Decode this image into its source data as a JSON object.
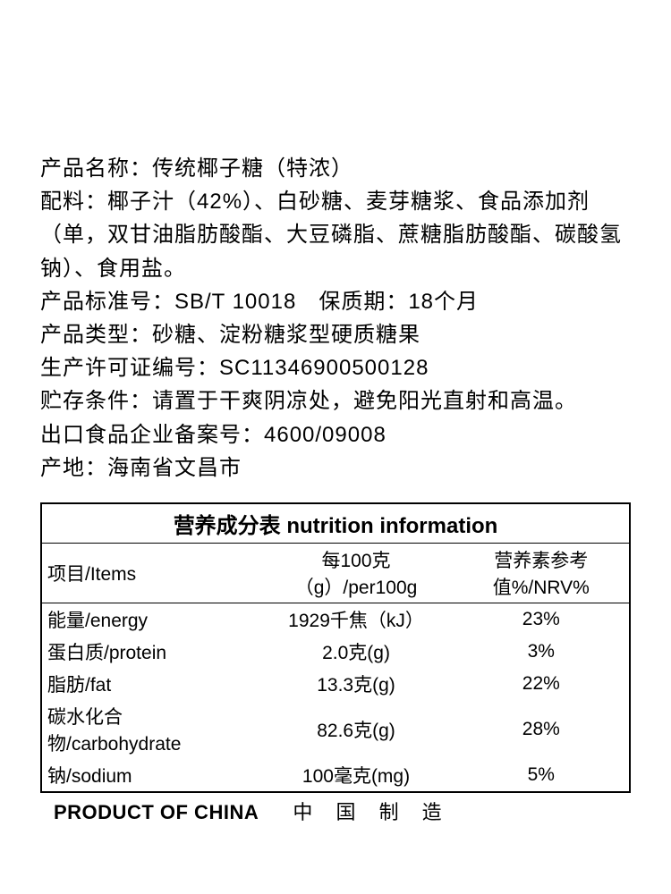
{
  "info": {
    "line1": "产品名称：传统椰子糖（特浓）",
    "line2": "配料：椰子汁（42%）、白砂糖、麦芽糖浆、食品添加剂（单，双甘油脂肪酸酯、大豆磷脂、蔗糖脂肪酸酯、碳酸氢钠）、食用盐。",
    "line3": "产品标准号：SB/T 10018　保质期：18个月",
    "line4": "产品类型：砂糖、淀粉糖浆型硬质糖果",
    "line5": "生产许可证编号：SC11346900500128",
    "line6": "贮存条件：请置于干爽阴凉处，避免阳光直射和高温。",
    "line7": "出口食品企业备案号：4600/09008",
    "line8": "产地：海南省文昌市"
  },
  "table": {
    "title": "营养成分表  nutrition information",
    "header": {
      "c1": "项目/Items",
      "c2": "每100克（g）/per100g",
      "c3": "营养素参考值%/NRV%"
    },
    "rows": [
      {
        "c1": "能量/energy",
        "c2": "1929千焦（kJ）",
        "c3": "23%"
      },
      {
        "c1": "蛋白质/protein",
        "c2": "2.0克(g)",
        "c3": "3%"
      },
      {
        "c1": "脂肪/fat",
        "c2": "13.3克(g)",
        "c3": "22%"
      },
      {
        "c1": "碳水化合物/carbohydrate",
        "c2": "82.6克(g)",
        "c3": "28%"
      },
      {
        "c1": "钠/sodium",
        "c2": "100毫克(mg)",
        "c3": "5%"
      }
    ]
  },
  "footer": {
    "left": "PRODUCT OF CHINA",
    "right": "中 国 制 造"
  },
  "style": {
    "text_color": "#000000",
    "background_color": "#ffffff",
    "border_color": "#000000",
    "body_fontsize": 24,
    "table_fontsize": 22,
    "title_fontsize": 24,
    "title_fontweight": "bold",
    "footer_left_fontweight": "bold",
    "line_height": 1.55,
    "border_width": 2
  }
}
